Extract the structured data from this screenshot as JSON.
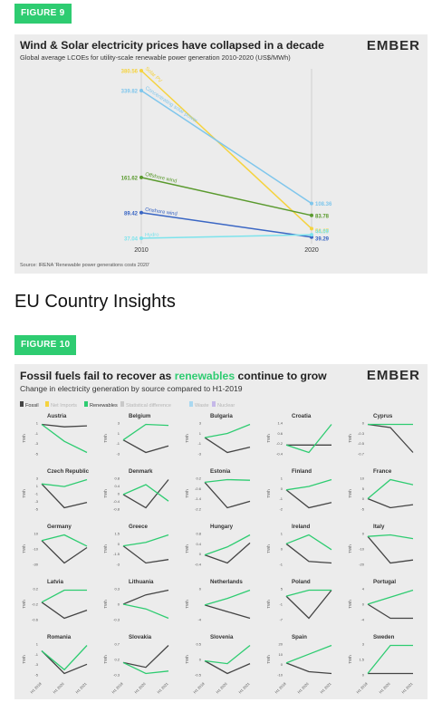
{
  "fig9": {
    "badge": "FIGURE 9",
    "title": "Wind & Solar electricity prices have collapsed in a decade",
    "subtitle": "Global average LCOEs for utility-scale renewable power generation 2010-2020 (US$/MWh)",
    "logo": "EMBER",
    "source": "Source: IRENA 'Renewable power generations costs 2020'"
  },
  "heading": "EU Country Insights",
  "fig10": {
    "badge": "FIGURE 10",
    "title_parts": [
      "Fossil",
      " fuels fail to recover as ",
      "renewables",
      " continue to grow"
    ],
    "subtitle": "Change in electricity generation by source compared to H1-2019",
    "logo": "EMBER",
    "ylabel": "TWh",
    "x_ticks": [
      "H1 2019",
      "H1 2020",
      "H1 2021"
    ]
  },
  "colors": {
    "solar": "#f5d33f",
    "csp": "#7fc6ec",
    "offshore": "#5a9a2e",
    "onshore": "#3a66c4",
    "hydro": "#7de3ec",
    "fossil": "#444444",
    "renewables": "#2ecc71",
    "badge": "#2ecc71"
  },
  "chart_data": [
    {
      "type": "line",
      "x": [
        2010,
        2020
      ],
      "series": [
        {
          "name": "Solar PV",
          "values": [
            380.56,
            56.67
          ]
        },
        {
          "name": "Concentrating solar power",
          "values": [
            339.82,
            108.36
          ]
        },
        {
          "name": "Offshore wind",
          "values": [
            161.62,
            83.78
          ]
        },
        {
          "name": "Onshore wind",
          "values": [
            89.42,
            39.29
          ]
        },
        {
          "name": "Hydro",
          "values": [
            37.04,
            44.09
          ]
        }
      ],
      "labels_left": [
        "380.56",
        "339.82",
        "161.62",
        "89.42",
        "37.04"
      ],
      "labels_right": [
        "56.67",
        "108.36",
        "83.78",
        "39.29",
        "44.09"
      ]
    },
    {
      "type": "line",
      "legend": [
        "Fossil",
        "Net Imports",
        "Renewables",
        "Statistical difference",
        "Waste",
        "Nuclear"
      ],
      "x": [
        "H1 2019",
        "H1 2020",
        "H1 2021"
      ],
      "countries": [
        {
          "name": "Austria",
          "ticks": [
            "1",
            "-1",
            "-3",
            "-5"
          ],
          "fossil": [
            0,
            -0.5,
            -0.3
          ],
          "renewables": [
            0,
            -3.5,
            -5.8
          ]
        },
        {
          "name": "Belgium",
          "ticks": [
            "3",
            "1",
            "-1",
            "-3"
          ],
          "fossil": [
            0,
            -2.5,
            -1.2
          ],
          "renewables": [
            0,
            3.1,
            2.9
          ]
        },
        {
          "name": "Bulgaria",
          "ticks": [
            "3",
            "1",
            "-1",
            "-3"
          ],
          "fossil": [
            0,
            -2.8,
            -1.8
          ],
          "renewables": [
            0,
            0.8,
            2.5
          ]
        },
        {
          "name": "Croatia",
          "ticks": [
            "1.4",
            "0.6",
            "-0.2",
            "-0.4"
          ],
          "fossil": [
            0,
            0,
            0
          ],
          "renewables": [
            0,
            -0.5,
            1.4
          ]
        },
        {
          "name": "Cyprus",
          "ticks": [
            "0",
            "-0.3",
            "-0.5",
            "-0.7"
          ],
          "fossil": [
            0,
            -0.08,
            -0.72
          ],
          "renewables": [
            0,
            0,
            0
          ]
        },
        {
          "name": "Czech Republic",
          "ticks": [
            "3",
            "1",
            "-1",
            "-3",
            "-5"
          ],
          "fossil": [
            0,
            -4.5,
            -3.5
          ],
          "renewables": [
            0,
            -0.5,
            0.8
          ]
        },
        {
          "name": "Denmark",
          "ticks": [
            "0.8",
            "0.4",
            "0",
            "-0.4",
            "-0.8"
          ],
          "fossil": [
            0,
            -0.8,
            0.9
          ],
          "renewables": [
            0,
            0.6,
            -0.4
          ]
        },
        {
          "name": "Estonia",
          "ticks": [
            "0.2",
            "-0.6",
            "-1.4",
            "-2.2"
          ],
          "fossil": [
            0,
            -2.0,
            -1.5
          ],
          "renewables": [
            0,
            0.2,
            0.15
          ]
        },
        {
          "name": "Finland",
          "ticks": [
            "1",
            "0",
            "-1",
            "-2"
          ],
          "fossil": [
            0,
            -2.1,
            -1.5
          ],
          "renewables": [
            0,
            0.4,
            1.2
          ]
        },
        {
          "name": "France",
          "ticks": [
            "10",
            "5",
            "0",
            "-5"
          ],
          "fossil": [
            0,
            -4.5,
            -3.0
          ],
          "renewables": [
            0,
            9.5,
            7.0
          ]
        },
        {
          "name": "Germany",
          "ticks": [
            "10",
            "-10",
            "-30"
          ],
          "fossil": [
            0,
            -32,
            -10
          ],
          "renewables": [
            0,
            8,
            -8
          ]
        },
        {
          "name": "Greece",
          "ticks": [
            "1.5",
            "0",
            "-1.5",
            "-3"
          ],
          "fossil": [
            0,
            -2.5,
            -2.0
          ],
          "renewables": [
            0,
            0.5,
            1.6
          ]
        },
        {
          "name": "Hungary",
          "ticks": [
            "0.8",
            "0.4",
            "0",
            "-0.4"
          ],
          "fossil": [
            0,
            -0.4,
            0.6
          ],
          "renewables": [
            0,
            0.4,
            1.0
          ]
        },
        {
          "name": "Ireland",
          "ticks": [
            "1",
            "0",
            "-1"
          ],
          "fossil": [
            0,
            -1.2,
            -1.3
          ],
          "renewables": [
            0,
            0.6,
            -0.4
          ]
        },
        {
          "name": "Italy",
          "ticks": [
            "0",
            "-10",
            "-20"
          ],
          "fossil": [
            0,
            -18,
            -16
          ],
          "renewables": [
            0,
            1.0,
            -1.5
          ]
        },
        {
          "name": "Latvia",
          "ticks": [
            "0.2",
            "-0.2",
            "-0.6"
          ],
          "fossil": [
            0,
            -0.4,
            -0.2
          ],
          "renewables": [
            0,
            0.3,
            0.3
          ]
        },
        {
          "name": "Lithuania",
          "ticks": [
            "0.3",
            "0",
            "-0.3"
          ],
          "fossil": [
            0,
            0.2,
            0.3
          ],
          "renewables": [
            0,
            -0.1,
            -0.3
          ]
        },
        {
          "name": "Netherlands",
          "ticks": [
            "0",
            "-4"
          ],
          "fossil": [
            0,
            -2.0,
            -4.0
          ],
          "renewables": [
            0,
            2.0,
            4.5
          ]
        },
        {
          "name": "Poland",
          "ticks": [
            "5",
            "-1",
            "-7"
          ],
          "fossil": [
            0,
            -7.5,
            2.0
          ],
          "renewables": [
            0,
            2.0,
            2.0
          ]
        },
        {
          "name": "Portugal",
          "ticks": [
            "4",
            "0",
            "-4"
          ],
          "fossil": [
            0,
            -4.0,
            -4.0
          ],
          "renewables": [
            0,
            2.0,
            4.0
          ]
        },
        {
          "name": "Romania",
          "ticks": [
            "1",
            "-1",
            "-3",
            "-5"
          ],
          "fossil": [
            0,
            -4.2,
            -2.5
          ],
          "renewables": [
            0,
            -3.5,
            1.0
          ]
        },
        {
          "name": "Slovakia",
          "ticks": [
            "0.7",
            "0.2",
            "-0.3"
          ],
          "fossil": [
            0,
            -0.2,
            0.7
          ],
          "renewables": [
            0,
            -0.45,
            -0.35
          ]
        },
        {
          "name": "Slovenia",
          "ticks": [
            "0.5",
            "0",
            "-0.5"
          ],
          "fossil": [
            0,
            -0.45,
            -0.1
          ],
          "renewables": [
            0,
            -0.1,
            0.55
          ]
        },
        {
          "name": "Spain",
          "ticks": [
            "20",
            "10",
            "0",
            "-10"
          ],
          "fossil": [
            0,
            -10,
            -12
          ],
          "renewables": [
            0,
            10,
            20
          ]
        },
        {
          "name": "Sweden",
          "ticks": [
            "3",
            "1.5",
            "0"
          ],
          "fossil": [
            0,
            0,
            0
          ],
          "renewables": [
            0,
            3.0,
            3.0
          ]
        }
      ]
    }
  ]
}
